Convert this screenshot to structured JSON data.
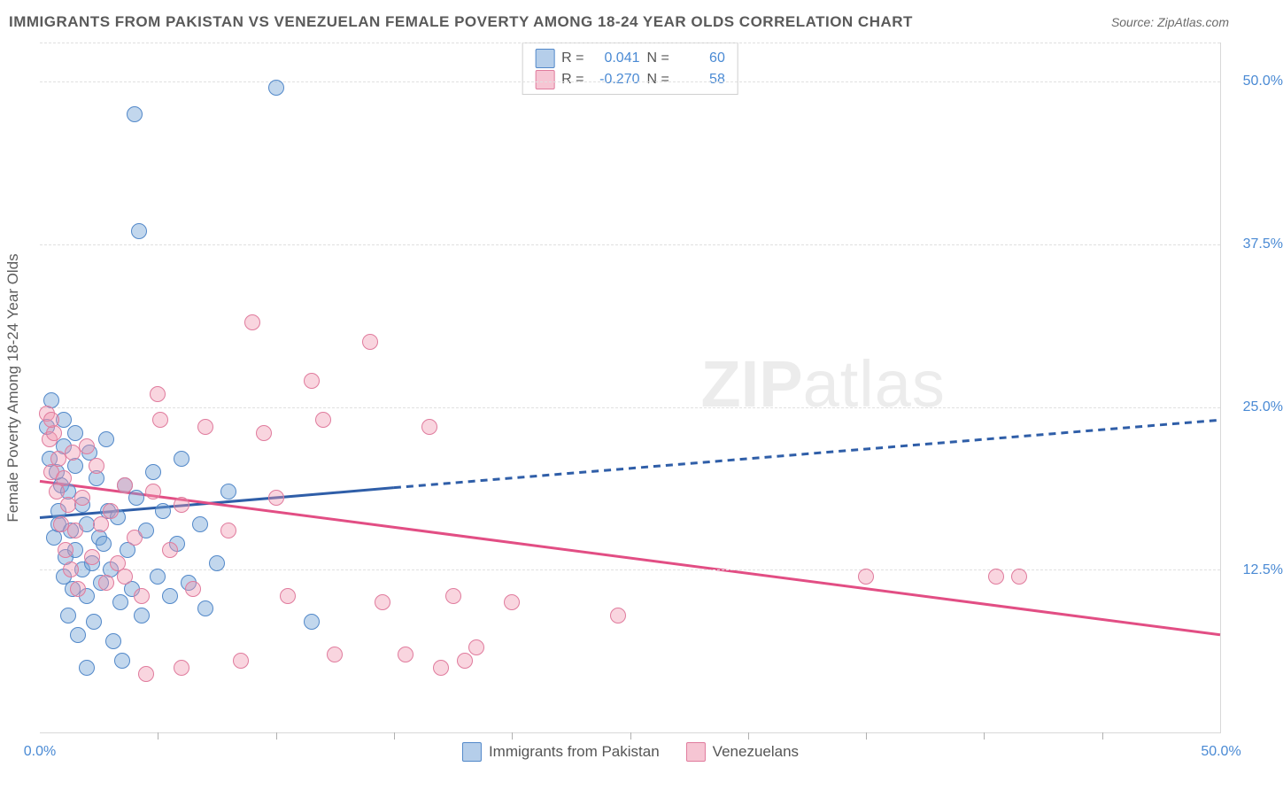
{
  "title": "IMMIGRANTS FROM PAKISTAN VS VENEZUELAN FEMALE POVERTY AMONG 18-24 YEAR OLDS CORRELATION CHART",
  "source": "Source: ZipAtlas.com",
  "y_axis_title": "Female Poverty Among 18-24 Year Olds",
  "watermark_a": "ZIP",
  "watermark_b": "atlas",
  "chart": {
    "type": "scatter",
    "x_min": 0.0,
    "x_max": 50.0,
    "y_min": 0.0,
    "y_max": 53.0,
    "x_label_min": "0.0%",
    "x_label_max": "50.0%",
    "x_tick_positions": [
      5,
      10,
      15,
      20,
      25,
      30,
      35,
      40,
      45
    ],
    "y_gridlines": [
      {
        "value": 12.5,
        "label": "12.5%"
      },
      {
        "value": 25.0,
        "label": "25.0%"
      },
      {
        "value": 37.5,
        "label": "37.5%"
      },
      {
        "value": 50.0,
        "label": "50.0%"
      }
    ],
    "colors": {
      "blue_fill": "rgba(120,166,216,0.45)",
      "blue_stroke": "#3a6fb5",
      "pink_fill": "rgba(239,149,175,0.40)",
      "pink_stroke": "#e24e84",
      "grid": "#e0e0e0",
      "label": "#4a8ad4"
    }
  },
  "stats_legend": {
    "rows": [
      {
        "r_label": "R =",
        "r_value": " 0.041",
        "spacer": "  ",
        "n_label": "N =",
        "n_value": "60",
        "series": "blue"
      },
      {
        "r_label": "R =",
        "r_value": "-0.270",
        "spacer": "  ",
        "n_label": "N =",
        "n_value": "58",
        "series": "pink"
      }
    ]
  },
  "bottom_legend": {
    "items": [
      {
        "label": "Immigrants from Pakistan",
        "series": "blue"
      },
      {
        "label": "Venezuelans",
        "series": "pink"
      }
    ]
  },
  "trend_lines": {
    "blue": {
      "color": "#2f5ea8",
      "width": 3,
      "solid": {
        "x1": 0.0,
        "y1": 16.5,
        "x2": 15.0,
        "y2": 18.8
      },
      "dashed": {
        "x1": 15.0,
        "y1": 18.8,
        "x2": 50.0,
        "y2": 24.0
      }
    },
    "pink": {
      "color": "#e24e84",
      "width": 3,
      "solid": {
        "x1": 0.0,
        "y1": 19.3,
        "x2": 50.0,
        "y2": 7.5
      }
    }
  },
  "series": {
    "blue": [
      [
        0.3,
        23.5
      ],
      [
        0.4,
        21.0
      ],
      [
        0.5,
        25.5
      ],
      [
        0.6,
        15.0
      ],
      [
        0.8,
        17.0
      ],
      [
        0.8,
        16.0
      ],
      [
        0.9,
        19.0
      ],
      [
        1.0,
        12.0
      ],
      [
        1.0,
        22.0
      ],
      [
        1.1,
        13.5
      ],
      [
        1.2,
        18.5
      ],
      [
        1.2,
        9.0
      ],
      [
        1.3,
        15.5
      ],
      [
        1.4,
        11.0
      ],
      [
        1.5,
        20.5
      ],
      [
        1.5,
        14.0
      ],
      [
        1.6,
        7.5
      ],
      [
        1.8,
        17.5
      ],
      [
        1.8,
        12.5
      ],
      [
        2.0,
        10.5
      ],
      [
        2.0,
        16.0
      ],
      [
        2.1,
        21.5
      ],
      [
        2.2,
        13.0
      ],
      [
        2.3,
        8.5
      ],
      [
        2.4,
        19.5
      ],
      [
        2.5,
        15.0
      ],
      [
        2.6,
        11.5
      ],
      [
        2.7,
        14.5
      ],
      [
        2.8,
        22.5
      ],
      [
        2.9,
        17.0
      ],
      [
        3.0,
        12.5
      ],
      [
        3.1,
        7.0
      ],
      [
        3.3,
        16.5
      ],
      [
        3.4,
        10.0
      ],
      [
        3.6,
        19.0
      ],
      [
        3.7,
        14.0
      ],
      [
        3.9,
        11.0
      ],
      [
        4.1,
        18.0
      ],
      [
        4.3,
        9.0
      ],
      [
        4.5,
        15.5
      ],
      [
        4.8,
        20.0
      ],
      [
        5.0,
        12.0
      ],
      [
        5.2,
        17.0
      ],
      [
        5.5,
        10.5
      ],
      [
        5.8,
        14.5
      ],
      [
        6.0,
        21.0
      ],
      [
        6.3,
        11.5
      ],
      [
        6.8,
        16.0
      ],
      [
        7.0,
        9.5
      ],
      [
        7.5,
        13.0
      ],
      [
        8.0,
        18.5
      ],
      [
        2.0,
        5.0
      ],
      [
        3.5,
        5.5
      ],
      [
        4.0,
        47.5
      ],
      [
        4.2,
        38.5
      ],
      [
        10.0,
        49.5
      ],
      [
        11.5,
        8.5
      ],
      [
        1.0,
        24.0
      ],
      [
        1.5,
        23.0
      ],
      [
        0.7,
        20.0
      ]
    ],
    "pink": [
      [
        0.3,
        24.5
      ],
      [
        0.4,
        22.5
      ],
      [
        0.5,
        20.0
      ],
      [
        0.6,
        23.0
      ],
      [
        0.7,
        18.5
      ],
      [
        0.8,
        21.0
      ],
      [
        0.9,
        16.0
      ],
      [
        1.0,
        19.5
      ],
      [
        1.1,
        14.0
      ],
      [
        1.2,
        17.5
      ],
      [
        1.3,
        12.5
      ],
      [
        1.4,
        21.5
      ],
      [
        1.5,
        15.5
      ],
      [
        1.6,
        11.0
      ],
      [
        1.8,
        18.0
      ],
      [
        2.0,
        22.0
      ],
      [
        2.2,
        13.5
      ],
      [
        2.4,
        20.5
      ],
      [
        2.6,
        16.0
      ],
      [
        2.8,
        11.5
      ],
      [
        3.0,
        17.0
      ],
      [
        3.3,
        13.0
      ],
      [
        3.6,
        19.0
      ],
      [
        3.6,
        12.0
      ],
      [
        4.0,
        15.0
      ],
      [
        4.3,
        10.5
      ],
      [
        4.8,
        18.5
      ],
      [
        5.1,
        24.0
      ],
      [
        5.5,
        14.0
      ],
      [
        6.0,
        17.5
      ],
      [
        6.5,
        11.0
      ],
      [
        7.0,
        23.5
      ],
      [
        5.0,
        26.0
      ],
      [
        8.0,
        15.5
      ],
      [
        8.5,
        5.5
      ],
      [
        9.0,
        31.5
      ],
      [
        9.5,
        23.0
      ],
      [
        10.0,
        18.0
      ],
      [
        10.5,
        10.5
      ],
      [
        11.5,
        27.0
      ],
      [
        12.0,
        24.0
      ],
      [
        12.5,
        6.0
      ],
      [
        14.0,
        30.0
      ],
      [
        14.5,
        10.0
      ],
      [
        15.5,
        6.0
      ],
      [
        17.0,
        5.0
      ],
      [
        16.5,
        23.5
      ],
      [
        17.5,
        10.5
      ],
      [
        18.5,
        6.5
      ],
      [
        18.0,
        5.5
      ],
      [
        20.0,
        10.0
      ],
      [
        24.5,
        9.0
      ],
      [
        4.5,
        4.5
      ],
      [
        6.0,
        5.0
      ],
      [
        35.0,
        12.0
      ],
      [
        40.5,
        12.0
      ],
      [
        41.5,
        12.0
      ],
      [
        0.5,
        24.0
      ]
    ]
  }
}
